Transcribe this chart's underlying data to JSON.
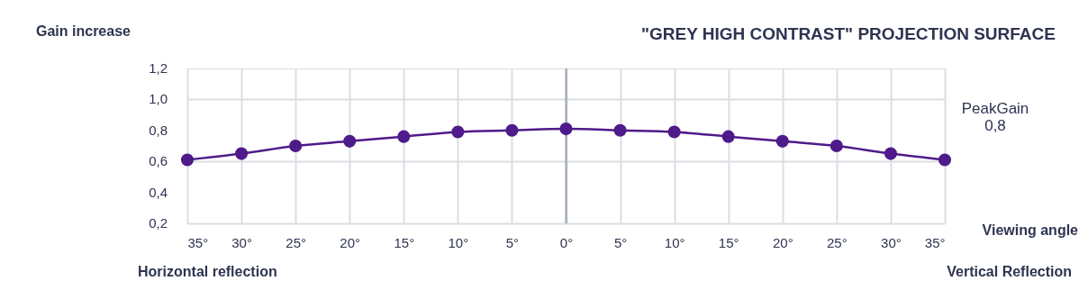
{
  "chart_data": {
    "type": "line",
    "title": "\"GREY HIGH CONTRAST\" PROJECTION SURFACE",
    "xlabel": "Viewing angle",
    "ylabel": "Gain increase",
    "categories": [
      "35°",
      "30°",
      "25°",
      "20°",
      "15°",
      "10°",
      "5°",
      "0°",
      "5°",
      "10°",
      "15°",
      "20°",
      "25°",
      "30°",
      "35°"
    ],
    "series": [
      {
        "color": "#4f1a8a",
        "values": [
          0.61,
          0.65,
          0.7,
          0.73,
          0.76,
          0.79,
          0.8,
          0.81,
          0.8,
          0.79,
          0.76,
          0.73,
          0.7,
          0.65,
          0.61
        ]
      }
    ],
    "ylim": [
      0.2,
      1.2
    ],
    "yticks": [
      {
        "value": 0.2,
        "label": "0,2"
      },
      {
        "value": 0.4,
        "label": "0,4"
      },
      {
        "value": 0.6,
        "label": "0,6"
      },
      {
        "value": 0.8,
        "label": "0,8"
      },
      {
        "value": 1.0,
        "label": "1,0"
      },
      {
        "value": 1.2,
        "label": "1,2"
      }
    ],
    "ref_lines": [
      {
        "axis": "x",
        "value": "0°",
        "color": "#9aa3ae"
      }
    ],
    "annotations": [
      "Horizontal reflection",
      "Vertical Reflection",
      "PeakGain 0,8"
    ],
    "grid": true,
    "marker": "circle",
    "line_style": "solid",
    "legend": false
  }
}
